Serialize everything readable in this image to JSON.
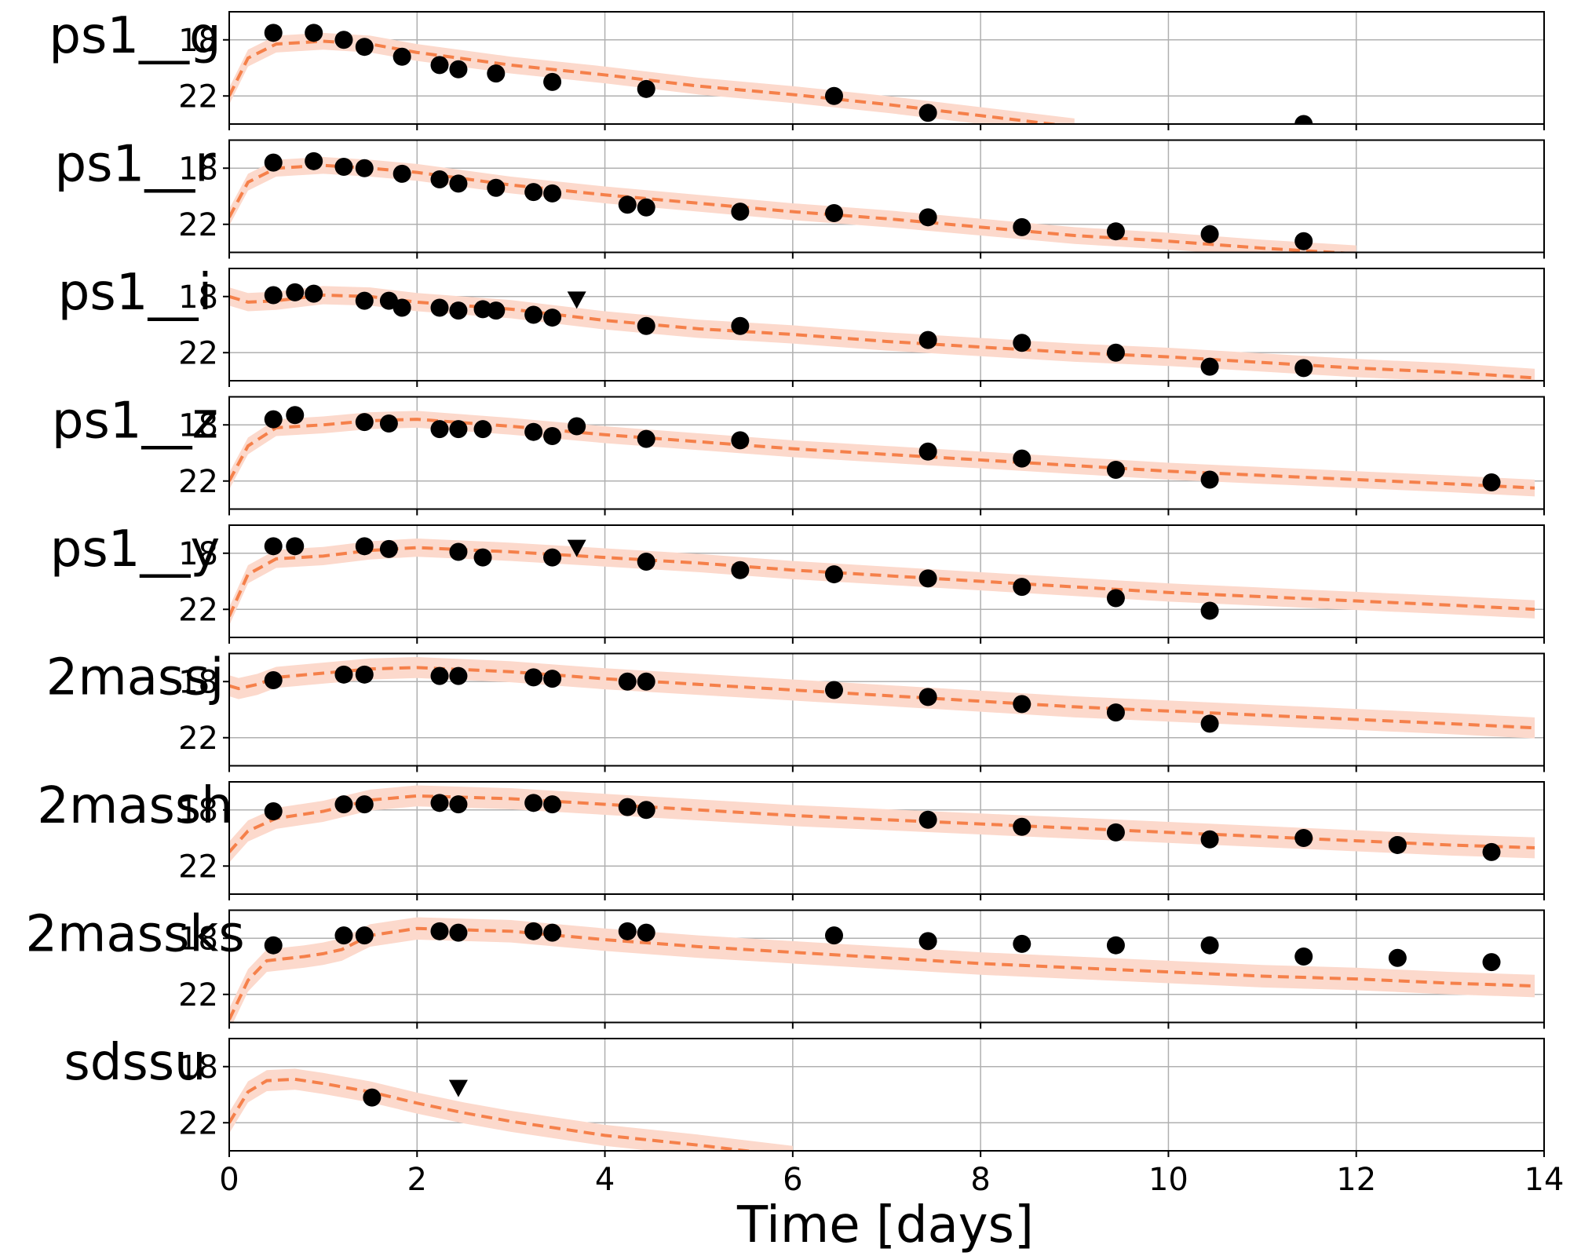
{
  "chart_data": {
    "type": "scatter",
    "xlabel": "Time [days]",
    "xlim": [
      0,
      14
    ],
    "xticks": [
      0,
      2,
      4,
      6,
      8,
      10,
      12,
      14
    ],
    "ylim": [
      24,
      16
    ],
    "yticks": [
      18,
      22
    ],
    "grid": true,
    "colors": {
      "points": "#000000",
      "model_line": "#f5804a",
      "model_band": "#fcd9cc"
    },
    "panels": [
      {
        "band": "ps1__g",
        "points": [
          [
            0.47,
            17.5
          ],
          [
            0.9,
            17.5
          ],
          [
            1.22,
            18.0
          ],
          [
            1.44,
            18.5
          ],
          [
            1.84,
            19.2
          ],
          [
            2.24,
            19.8
          ],
          [
            2.44,
            20.1
          ],
          [
            2.84,
            20.4
          ],
          [
            3.44,
            21.0
          ],
          [
            4.44,
            21.5
          ],
          [
            6.44,
            22.0
          ],
          [
            7.44,
            23.2
          ],
          [
            11.44,
            24.0
          ]
        ],
        "upper_limits": [],
        "model": [
          [
            0,
            22.0
          ],
          [
            0.2,
            19.3
          ],
          [
            0.5,
            18.3
          ],
          [
            1.0,
            18.1
          ],
          [
            1.5,
            18.3
          ],
          [
            2.0,
            18.9
          ],
          [
            3.0,
            19.8
          ],
          [
            4.0,
            20.5
          ],
          [
            5.0,
            21.3
          ],
          [
            6.0,
            21.9
          ],
          [
            7.0,
            22.6
          ],
          [
            8.0,
            23.4
          ],
          [
            9.0,
            24.2
          ]
        ],
        "band_width": 1.2
      },
      {
        "band": "ps1__r",
        "points": [
          [
            0.47,
            17.6
          ],
          [
            0.9,
            17.5
          ],
          [
            1.22,
            17.9
          ],
          [
            1.44,
            18.0
          ],
          [
            1.84,
            18.4
          ],
          [
            2.24,
            18.8
          ],
          [
            2.44,
            19.1
          ],
          [
            2.84,
            19.4
          ],
          [
            3.24,
            19.7
          ],
          [
            3.44,
            19.8
          ],
          [
            4.24,
            20.6
          ],
          [
            4.44,
            20.8
          ],
          [
            5.44,
            21.1
          ],
          [
            6.44,
            21.2
          ],
          [
            7.44,
            21.5
          ],
          [
            8.44,
            22.2
          ],
          [
            9.44,
            22.5
          ],
          [
            10.44,
            22.7
          ],
          [
            11.44,
            23.2
          ]
        ],
        "upper_limits": [],
        "model": [
          [
            0,
            21.5
          ],
          [
            0.2,
            19.0
          ],
          [
            0.5,
            18.0
          ],
          [
            1.0,
            17.8
          ],
          [
            1.5,
            18.0
          ],
          [
            2.0,
            18.3
          ],
          [
            3.0,
            19.2
          ],
          [
            4.0,
            19.9
          ],
          [
            5.0,
            20.5
          ],
          [
            6.0,
            21.1
          ],
          [
            7.0,
            21.6
          ],
          [
            8.0,
            22.2
          ],
          [
            9.0,
            22.8
          ],
          [
            10.0,
            23.2
          ],
          [
            11.0,
            23.7
          ],
          [
            12.0,
            24.1
          ]
        ],
        "band_width": 1.2
      },
      {
        "band": "ps1__i",
        "points": [
          [
            0.47,
            17.9
          ],
          [
            0.7,
            17.7
          ],
          [
            0.9,
            17.8
          ],
          [
            1.44,
            18.3
          ],
          [
            1.7,
            18.3
          ],
          [
            1.84,
            18.8
          ],
          [
            2.24,
            18.8
          ],
          [
            2.44,
            19.0
          ],
          [
            2.7,
            18.9
          ],
          [
            2.84,
            19.0
          ],
          [
            3.24,
            19.3
          ],
          [
            3.44,
            19.5
          ],
          [
            4.44,
            20.1
          ],
          [
            5.44,
            20.1
          ],
          [
            7.44,
            21.1
          ],
          [
            8.44,
            21.3
          ],
          [
            9.44,
            22.0
          ],
          [
            10.44,
            23.0
          ],
          [
            11.44,
            23.1
          ]
        ],
        "upper_limits": [
          [
            3.7,
            18.2
          ]
        ],
        "model": [
          [
            0,
            18.0
          ],
          [
            0.2,
            18.4
          ],
          [
            0.5,
            18.3
          ],
          [
            1.0,
            17.9
          ],
          [
            1.5,
            18.0
          ],
          [
            2.0,
            18.4
          ],
          [
            3.0,
            18.9
          ],
          [
            4.0,
            19.7
          ],
          [
            5.0,
            20.3
          ],
          [
            6.0,
            20.7
          ],
          [
            7.0,
            21.2
          ],
          [
            8.0,
            21.6
          ],
          [
            9.0,
            22.0
          ],
          [
            10.0,
            22.3
          ],
          [
            11.0,
            22.7
          ],
          [
            12.0,
            23.1
          ],
          [
            13.0,
            23.4
          ],
          [
            13.9,
            23.8
          ]
        ],
        "band_width": 1.3
      },
      {
        "band": "ps1__z",
        "points": [
          [
            0.47,
            17.6
          ],
          [
            0.7,
            17.3
          ],
          [
            1.44,
            17.8
          ],
          [
            1.7,
            17.9
          ],
          [
            2.24,
            18.3
          ],
          [
            2.44,
            18.3
          ],
          [
            2.7,
            18.3
          ],
          [
            3.24,
            18.5
          ],
          [
            3.44,
            18.8
          ],
          [
            3.7,
            18.1
          ],
          [
            4.44,
            19.0
          ],
          [
            5.44,
            19.1
          ],
          [
            7.44,
            19.9
          ],
          [
            8.44,
            20.4
          ],
          [
            9.44,
            21.2
          ],
          [
            10.44,
            21.9
          ],
          [
            13.44,
            22.1
          ]
        ],
        "upper_limits": [],
        "model": [
          [
            0,
            22.0
          ],
          [
            0.2,
            19.5
          ],
          [
            0.5,
            18.2
          ],
          [
            1.0,
            18.0
          ],
          [
            1.5,
            17.7
          ],
          [
            2.0,
            17.6
          ],
          [
            3.0,
            18.1
          ],
          [
            4.0,
            18.7
          ],
          [
            5.0,
            19.2
          ],
          [
            6.0,
            19.7
          ],
          [
            7.0,
            20.1
          ],
          [
            8.0,
            20.5
          ],
          [
            9.0,
            20.9
          ],
          [
            10.0,
            21.3
          ],
          [
            11.0,
            21.6
          ],
          [
            12.0,
            21.9
          ],
          [
            13.0,
            22.2
          ],
          [
            13.9,
            22.5
          ]
        ],
        "band_width": 1.2
      },
      {
        "band": "ps1__y",
        "points": [
          [
            0.47,
            17.5
          ],
          [
            0.7,
            17.5
          ],
          [
            1.44,
            17.5
          ],
          [
            1.7,
            17.7
          ],
          [
            2.44,
            17.9
          ],
          [
            2.7,
            18.3
          ],
          [
            3.44,
            18.3
          ],
          [
            4.44,
            18.6
          ],
          [
            5.44,
            19.2
          ],
          [
            6.44,
            19.5
          ],
          [
            7.44,
            19.8
          ],
          [
            8.44,
            20.4
          ],
          [
            9.44,
            21.2
          ],
          [
            10.44,
            22.1
          ]
        ],
        "upper_limits": [
          [
            3.7,
            17.6
          ]
        ],
        "model": [
          [
            0,
            22.5
          ],
          [
            0.2,
            19.5
          ],
          [
            0.5,
            18.4
          ],
          [
            1.0,
            18.2
          ],
          [
            1.5,
            17.8
          ],
          [
            2.0,
            17.6
          ],
          [
            3.0,
            17.9
          ],
          [
            4.0,
            18.3
          ],
          [
            5.0,
            18.7
          ],
          [
            6.0,
            19.2
          ],
          [
            7.0,
            19.6
          ],
          [
            8.0,
            20.0
          ],
          [
            9.0,
            20.4
          ],
          [
            10.0,
            20.8
          ],
          [
            11.0,
            21.1
          ],
          [
            12.0,
            21.4
          ],
          [
            13.0,
            21.7
          ],
          [
            13.9,
            22.0
          ]
        ],
        "band_width": 1.3
      },
      {
        "band": "2massj",
        "points": [
          [
            0.47,
            17.9
          ],
          [
            1.22,
            17.5
          ],
          [
            1.44,
            17.5
          ],
          [
            2.24,
            17.6
          ],
          [
            2.44,
            17.6
          ],
          [
            3.24,
            17.7
          ],
          [
            3.44,
            17.8
          ],
          [
            4.24,
            18.0
          ],
          [
            4.44,
            18.0
          ],
          [
            6.44,
            18.6
          ],
          [
            7.44,
            19.1
          ],
          [
            8.44,
            19.6
          ],
          [
            9.44,
            20.2
          ],
          [
            10.44,
            21.0
          ]
        ],
        "upper_limits": [],
        "model": [
          [
            0,
            18.3
          ],
          [
            0.1,
            18.5
          ],
          [
            0.3,
            18.2
          ],
          [
            0.5,
            17.7
          ],
          [
            1.0,
            17.4
          ],
          [
            1.5,
            17.1
          ],
          [
            2.0,
            17.0
          ],
          [
            3.0,
            17.3
          ],
          [
            4.0,
            17.8
          ],
          [
            5.0,
            18.2
          ],
          [
            6.0,
            18.6
          ],
          [
            7.0,
            19.0
          ],
          [
            8.0,
            19.4
          ],
          [
            9.0,
            19.8
          ],
          [
            10.0,
            20.1
          ],
          [
            11.0,
            20.4
          ],
          [
            12.0,
            20.7
          ],
          [
            13.0,
            21.0
          ],
          [
            13.9,
            21.3
          ]
        ],
        "band_width": 1.5
      },
      {
        "band": "2massh",
        "points": [
          [
            0.47,
            18.1
          ],
          [
            1.22,
            17.6
          ],
          [
            1.44,
            17.6
          ],
          [
            2.24,
            17.5
          ],
          [
            2.44,
            17.6
          ],
          [
            3.24,
            17.5
          ],
          [
            3.44,
            17.6
          ],
          [
            4.24,
            17.8
          ],
          [
            4.44,
            18.0
          ],
          [
            7.44,
            18.7
          ],
          [
            8.44,
            19.2
          ],
          [
            9.44,
            19.6
          ],
          [
            10.44,
            20.1
          ],
          [
            11.44,
            20.0
          ],
          [
            12.44,
            20.5
          ],
          [
            13.44,
            21.0
          ]
        ],
        "upper_limits": [],
        "model": [
          [
            0,
            21.0
          ],
          [
            0.2,
            19.5
          ],
          [
            0.5,
            18.6
          ],
          [
            1.0,
            18.1
          ],
          [
            1.5,
            17.3
          ],
          [
            2.0,
            17.0
          ],
          [
            3.0,
            17.2
          ],
          [
            4.0,
            17.6
          ],
          [
            5.0,
            18.0
          ],
          [
            6.0,
            18.4
          ],
          [
            7.0,
            18.7
          ],
          [
            8.0,
            19.0
          ],
          [
            9.0,
            19.3
          ],
          [
            10.0,
            19.6
          ],
          [
            11.0,
            19.9
          ],
          [
            12.0,
            20.2
          ],
          [
            13.0,
            20.5
          ],
          [
            13.9,
            20.7
          ]
        ],
        "band_width": 1.5
      },
      {
        "band": "2massks",
        "points": [
          [
            0.47,
            18.5
          ],
          [
            1.22,
            17.8
          ],
          [
            1.44,
            17.8
          ],
          [
            2.24,
            17.5
          ],
          [
            2.44,
            17.6
          ],
          [
            3.24,
            17.5
          ],
          [
            3.44,
            17.6
          ],
          [
            4.24,
            17.5
          ],
          [
            4.44,
            17.6
          ],
          [
            6.44,
            17.8
          ],
          [
            7.44,
            18.2
          ],
          [
            8.44,
            18.4
          ],
          [
            9.44,
            18.5
          ],
          [
            10.44,
            18.5
          ],
          [
            11.44,
            19.3
          ],
          [
            12.44,
            19.4
          ],
          [
            13.44,
            19.7
          ]
        ],
        "upper_limits": [],
        "model": [
          [
            0,
            23.8
          ],
          [
            0.2,
            21.0
          ],
          [
            0.4,
            19.6
          ],
          [
            0.8,
            19.3
          ],
          [
            1.0,
            19.1
          ],
          [
            1.2,
            18.8
          ],
          [
            1.5,
            17.8
          ],
          [
            2.0,
            17.3
          ],
          [
            3.0,
            17.5
          ],
          [
            4.0,
            18.1
          ],
          [
            5.0,
            18.6
          ],
          [
            6.0,
            19.0
          ],
          [
            7.0,
            19.4
          ],
          [
            8.0,
            19.8
          ],
          [
            9.0,
            20.1
          ],
          [
            10.0,
            20.4
          ],
          [
            11.0,
            20.7
          ],
          [
            12.0,
            20.9
          ],
          [
            13.0,
            21.2
          ],
          [
            13.9,
            21.4
          ]
        ],
        "band_width": 1.6
      },
      {
        "band": "sdssu",
        "points": [
          [
            1.52,
            20.2
          ]
        ],
        "upper_limits": [
          [
            2.44,
            19.5
          ]
        ],
        "model": [
          [
            0,
            22.0
          ],
          [
            0.2,
            19.8
          ],
          [
            0.4,
            19.0
          ],
          [
            0.7,
            18.9
          ],
          [
            1.0,
            19.2
          ],
          [
            1.5,
            19.8
          ],
          [
            2.0,
            20.6
          ],
          [
            2.5,
            21.3
          ],
          [
            3.0,
            21.9
          ],
          [
            4.0,
            22.9
          ],
          [
            5.0,
            23.6
          ],
          [
            6.0,
            24.4
          ]
        ],
        "band_width": 1.5
      }
    ]
  }
}
